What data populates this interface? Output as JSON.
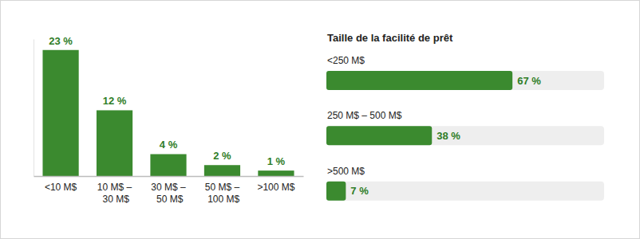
{
  "chart_data": [
    {
      "type": "bar",
      "categories": [
        "<10 M$",
        "10 M$ – 30 M$",
        "30 M$ – 50 M$",
        "50 M$ – 100 M$",
        ">100 M$"
      ],
      "values": [
        23,
        12,
        4,
        2,
        1
      ],
      "value_labels": [
        "23 %",
        "12 %",
        "4 %",
        "2 %",
        "1 %"
      ],
      "color": "#3b8a2f",
      "ylim": [
        0,
        25
      ],
      "data_labels": true,
      "tick_labels": "x"
    },
    {
      "type": "bar",
      "orientation": "horizontal",
      "title": "Taille de la facilité de prêt",
      "categories": [
        "<250 M$",
        "250 M$ – 500 M$",
        ">500 M$"
      ],
      "values": [
        67,
        38,
        7
      ],
      "value_labels": [
        "67 %",
        "38 %",
        "7 %"
      ],
      "color": "#3b8a2f",
      "xlim": [
        0,
        100
      ],
      "data_labels": true,
      "tick_labels": "y"
    }
  ]
}
